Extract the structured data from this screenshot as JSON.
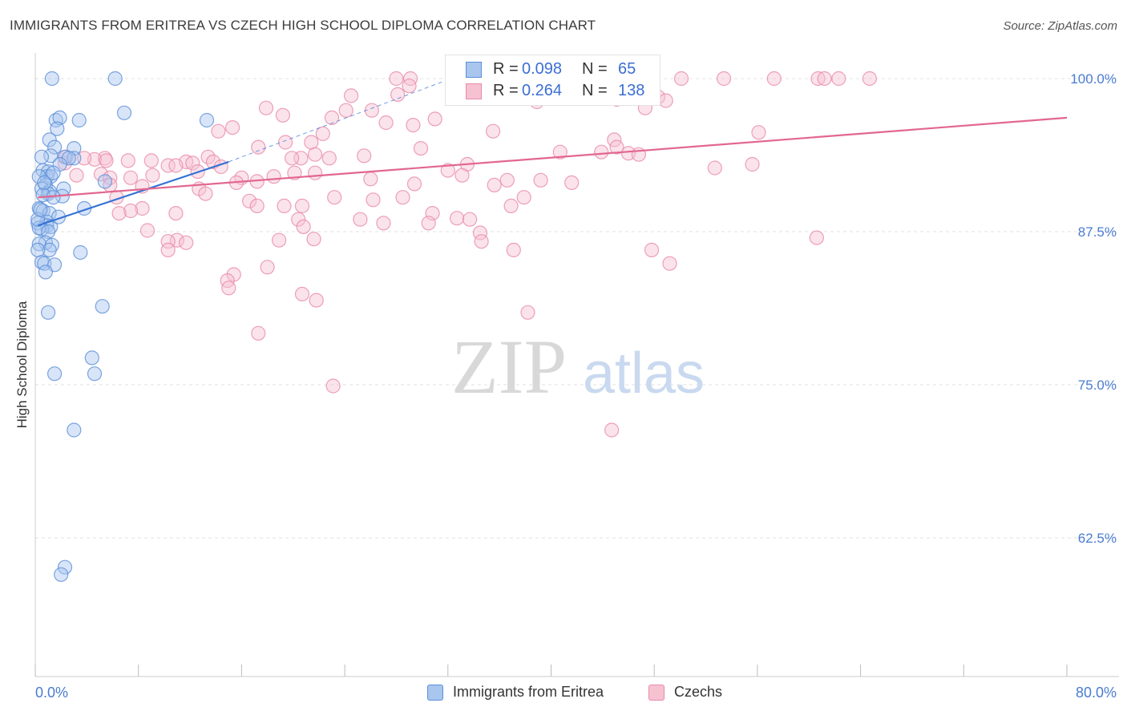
{
  "header": {
    "title": "IMMIGRANTS FROM ERITREA VS CZECH HIGH SCHOOL DIPLOMA CORRELATION CHART",
    "source": "Source: ZipAtlas.com"
  },
  "legend": {
    "rows": [
      {
        "r_label": "R =",
        "r_value": "0.098",
        "n_label": "N =",
        "n_value": "65"
      },
      {
        "r_label": "R =",
        "r_value": "0.264",
        "n_label": "N =",
        "n_value": "138"
      }
    ],
    "series_names": [
      "Immigrants from Eritrea",
      "Czechs"
    ]
  },
  "colors": {
    "blue_fill": "#a9c6ef",
    "blue_stroke": "#5b8fd8",
    "blue_line": "#3572d4",
    "pink_fill": "#f6c2d2",
    "pink_stroke": "#e88aa8",
    "pink_line": "#e2678f",
    "axis_label": "#4a7bd0",
    "grid": "#e0e0e0"
  },
  "chart_data": {
    "type": "scatter",
    "title": "IMMIGRANTS FROM ERITREA VS CZECH HIGH SCHOOL DIPLOMA CORRELATION CHART",
    "xlabel": "",
    "ylabel": "High School Diploma",
    "xlim": [
      0,
      80
    ],
    "ylim": [
      52.5,
      101.5
    ],
    "x_tick_labels": [
      {
        "x": 0,
        "label": "0.0%"
      },
      {
        "x": 80,
        "label": "80.0%"
      }
    ],
    "y_ticks": [
      {
        "y": 100,
        "label": "100.0%"
      },
      {
        "y": 87.5,
        "label": "87.5%"
      },
      {
        "y": 75,
        "label": "75.0%"
      },
      {
        "y": 62.5,
        "label": "62.5%"
      }
    ],
    "x_minor_ticks": [
      0,
      8,
      16,
      24,
      32,
      40,
      48,
      56,
      64,
      72,
      80
    ],
    "watermark": {
      "zip": "ZIP",
      "atlas": "atlas"
    },
    "series": [
      {
        "name": "Immigrants from Eritrea",
        "r": 0.098,
        "n": 65,
        "trend_solid": [
          [
            0.2,
            88.0
          ],
          [
            15.0,
            93.2
          ]
        ],
        "trend_dashed": [
          [
            15.0,
            93.2
          ],
          [
            32.0,
            99.9
          ]
        ],
        "points": [
          [
            1.3,
            100.0
          ],
          [
            6.2,
            100.0
          ],
          [
            6.9,
            97.2
          ],
          [
            13.3,
            96.6
          ],
          [
            1.6,
            96.6
          ],
          [
            3.4,
            96.6
          ],
          [
            1.9,
            96.8
          ],
          [
            1.7,
            95.9
          ],
          [
            1.1,
            95.0
          ],
          [
            1.5,
            94.4
          ],
          [
            3.0,
            94.3
          ],
          [
            1.2,
            93.7
          ],
          [
            2.3,
            93.6
          ],
          [
            0.5,
            93.6
          ],
          [
            3.0,
            93.5
          ],
          [
            2.6,
            93.5
          ],
          [
            1.9,
            93.0
          ],
          [
            0.6,
            92.5
          ],
          [
            1.0,
            92.4
          ],
          [
            0.9,
            92.0
          ],
          [
            1.2,
            92.0
          ],
          [
            1.4,
            92.3
          ],
          [
            0.3,
            92.0
          ],
          [
            5.4,
            91.6
          ],
          [
            0.8,
            91.3
          ],
          [
            0.5,
            91.0
          ],
          [
            2.2,
            91.0
          ],
          [
            1.1,
            90.8
          ],
          [
            1.0,
            90.6
          ],
          [
            0.6,
            90.5
          ],
          [
            2.1,
            90.4
          ],
          [
            1.4,
            90.3
          ],
          [
            0.3,
            89.4
          ],
          [
            0.6,
            89.2
          ],
          [
            3.8,
            89.4
          ],
          [
            1.1,
            89.0
          ],
          [
            0.9,
            88.3
          ],
          [
            0.2,
            88.2
          ],
          [
            0.9,
            88.0
          ],
          [
            1.2,
            87.9
          ],
          [
            0.5,
            87.7
          ],
          [
            0.3,
            87.8
          ],
          [
            1.0,
            87.5
          ],
          [
            0.8,
            86.6
          ],
          [
            0.3,
            86.5
          ],
          [
            1.3,
            86.4
          ],
          [
            1.1,
            86.0
          ],
          [
            0.2,
            86.0
          ],
          [
            3.5,
            85.8
          ],
          [
            0.5,
            85.0
          ],
          [
            0.7,
            84.9
          ],
          [
            1.5,
            84.8
          ],
          [
            0.8,
            84.2
          ],
          [
            5.2,
            81.4
          ],
          [
            1.0,
            80.9
          ],
          [
            4.4,
            77.2
          ],
          [
            4.6,
            75.9
          ],
          [
            1.5,
            75.9
          ],
          [
            3.0,
            71.3
          ],
          [
            2.3,
            60.1
          ],
          [
            2.0,
            59.5
          ],
          [
            0.2,
            88.5
          ],
          [
            0.4,
            89.3
          ],
          [
            0.7,
            91.5
          ],
          [
            1.8,
            88.7
          ]
        ]
      },
      {
        "name": "Czechs",
        "r": 0.264,
        "n": 138,
        "trend_solid": [
          [
            0.2,
            90.3
          ],
          [
            80.0,
            96.8
          ]
        ],
        "points": [
          [
            28.0,
            100.0
          ],
          [
            29.1,
            100.0
          ],
          [
            36.2,
            100.0
          ],
          [
            37.5,
            100.0
          ],
          [
            46.5,
            100.0
          ],
          [
            47.4,
            100.0
          ],
          [
            50.1,
            100.0
          ],
          [
            53.4,
            100.0
          ],
          [
            57.3,
            100.0
          ],
          [
            60.7,
            100.0
          ],
          [
            61.2,
            100.0
          ],
          [
            62.3,
            100.0
          ],
          [
            64.7,
            100.0
          ],
          [
            29.0,
            99.4
          ],
          [
            34.4,
            99.2
          ],
          [
            28.1,
            98.7
          ],
          [
            24.5,
            98.6
          ],
          [
            40.0,
            98.5
          ],
          [
            45.1,
            98.3
          ],
          [
            48.3,
            98.5
          ],
          [
            48.9,
            98.2
          ],
          [
            38.9,
            98.1
          ],
          [
            17.9,
            97.6
          ],
          [
            24.1,
            97.4
          ],
          [
            26.1,
            97.4
          ],
          [
            47.3,
            97.6
          ],
          [
            23.0,
            96.8
          ],
          [
            31.0,
            96.7
          ],
          [
            27.2,
            96.4
          ],
          [
            29.3,
            96.2
          ],
          [
            15.3,
            96.0
          ],
          [
            14.2,
            95.7
          ],
          [
            22.3,
            95.5
          ],
          [
            35.5,
            95.7
          ],
          [
            56.1,
            95.6
          ],
          [
            44.9,
            95.0
          ],
          [
            21.4,
            94.8
          ],
          [
            19.4,
            94.8
          ],
          [
            17.3,
            94.4
          ],
          [
            29.9,
            94.3
          ],
          [
            40.7,
            94.0
          ],
          [
            43.9,
            94.0
          ],
          [
            45.1,
            94.4
          ],
          [
            46.0,
            93.9
          ],
          [
            46.8,
            93.8
          ],
          [
            21.7,
            93.8
          ],
          [
            25.5,
            93.7
          ],
          [
            22.8,
            93.5
          ],
          [
            20.6,
            93.5
          ],
          [
            19.9,
            93.5
          ],
          [
            13.4,
            93.6
          ],
          [
            5.4,
            93.5
          ],
          [
            4.6,
            93.4
          ],
          [
            3.8,
            93.5
          ],
          [
            5.5,
            93.3
          ],
          [
            7.2,
            93.3
          ],
          [
            9.0,
            93.3
          ],
          [
            11.7,
            93.2
          ],
          [
            12.2,
            93.1
          ],
          [
            13.8,
            93.2
          ],
          [
            10.3,
            92.9
          ],
          [
            10.9,
            92.9
          ],
          [
            14.4,
            92.8
          ],
          [
            2.3,
            93.1
          ],
          [
            2.4,
            93.6
          ],
          [
            33.5,
            93.0
          ],
          [
            52.7,
            92.7
          ],
          [
            55.6,
            93.0
          ],
          [
            32.0,
            92.5
          ],
          [
            33.1,
            92.1
          ],
          [
            21.7,
            92.3
          ],
          [
            20.1,
            92.3
          ],
          [
            18.5,
            92.0
          ],
          [
            16.0,
            91.9
          ],
          [
            15.6,
            91.5
          ],
          [
            17.2,
            91.6
          ],
          [
            9.1,
            92.1
          ],
          [
            5.1,
            92.2
          ],
          [
            5.8,
            91.9
          ],
          [
            5.8,
            91.3
          ],
          [
            7.4,
            91.9
          ],
          [
            8.3,
            91.2
          ],
          [
            12.7,
            91.0
          ],
          [
            36.6,
            91.7
          ],
          [
            39.2,
            91.7
          ],
          [
            26.0,
            91.8
          ],
          [
            29.4,
            91.4
          ],
          [
            35.6,
            91.3
          ],
          [
            41.6,
            91.5
          ],
          [
            13.2,
            90.6
          ],
          [
            6.3,
            90.3
          ],
          [
            23.2,
            90.3
          ],
          [
            26.2,
            90.1
          ],
          [
            37.9,
            90.3
          ],
          [
            28.5,
            90.3
          ],
          [
            16.6,
            90.0
          ],
          [
            17.2,
            89.6
          ],
          [
            19.3,
            89.6
          ],
          [
            20.7,
            89.6
          ],
          [
            36.9,
            89.6
          ],
          [
            8.3,
            89.4
          ],
          [
            7.4,
            89.2
          ],
          [
            10.9,
            89.0
          ],
          [
            6.5,
            89.0
          ],
          [
            30.8,
            89.0
          ],
          [
            32.7,
            88.6
          ],
          [
            33.7,
            88.5
          ],
          [
            20.4,
            88.5
          ],
          [
            25.2,
            88.5
          ],
          [
            27.0,
            88.2
          ],
          [
            30.5,
            88.2
          ],
          [
            8.7,
            87.6
          ],
          [
            34.5,
            87.4
          ],
          [
            34.6,
            86.7
          ],
          [
            60.6,
            87.0
          ],
          [
            11.0,
            86.8
          ],
          [
            10.3,
            86.7
          ],
          [
            11.7,
            86.6
          ],
          [
            18.9,
            86.8
          ],
          [
            21.6,
            86.9
          ],
          [
            10.3,
            86.0
          ],
          [
            37.1,
            86.0
          ],
          [
            47.8,
            86.0
          ],
          [
            49.2,
            84.9
          ],
          [
            18.0,
            84.6
          ],
          [
            15.4,
            84.0
          ],
          [
            14.9,
            83.5
          ],
          [
            15.0,
            82.9
          ],
          [
            20.7,
            82.4
          ],
          [
            21.8,
            81.9
          ],
          [
            38.2,
            80.9
          ],
          [
            17.3,
            79.2
          ],
          [
            23.1,
            74.9
          ],
          [
            44.7,
            71.3
          ],
          [
            20.8,
            87.9
          ],
          [
            19.2,
            97.0
          ],
          [
            12.6,
            92.4
          ],
          [
            3.2,
            92.1
          ]
        ]
      }
    ]
  }
}
